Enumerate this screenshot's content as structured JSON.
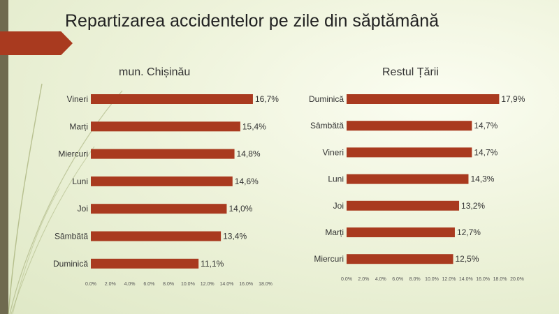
{
  "slide": {
    "title": "Repartizarea accidentelor pe zile din săptămână",
    "colors": {
      "bar": "#a93a1f",
      "sidebar": "#6f6a4f",
      "band": "#a93a1f"
    }
  },
  "chart_data": [
    {
      "type": "bar",
      "orientation": "horizontal",
      "title": "mun. Chișinău",
      "categories": [
        "Vineri",
        "Marți",
        "Miercuri",
        "Luni",
        "Joi",
        "Sâmbătă",
        "Duminică"
      ],
      "values": [
        16.7,
        15.4,
        14.8,
        14.6,
        14.0,
        13.4,
        11.1
      ],
      "data_labels": [
        "16,7%",
        "15,4%",
        "14,8%",
        "14,6%",
        "14,0%",
        "13,4%",
        "11,1%"
      ],
      "ticks": [
        "0.0%",
        "2.0%",
        "4.0%",
        "6.0%",
        "8.0%",
        "10.0%",
        "12.0%",
        "14.0%",
        "16.0%",
        "18.0%"
      ],
      "xlim": [
        0,
        18
      ],
      "grid": false,
      "legend": "none"
    },
    {
      "type": "bar",
      "orientation": "horizontal",
      "title": "Restul Țării",
      "categories": [
        "Duminică",
        "Sâmbătă",
        "Vineri",
        "Luni",
        "Joi",
        "Marți",
        "Miercuri"
      ],
      "values": [
        17.9,
        14.7,
        14.7,
        14.3,
        13.2,
        12.7,
        12.5
      ],
      "data_labels": [
        "17,9%",
        "14,7%",
        "14,7%",
        "14,3%",
        "13,2%",
        "12,7%",
        "12,5%"
      ],
      "ticks": [
        "0.0%",
        "2.0%",
        "4.0%",
        "6.0%",
        "8.0%",
        "10.0%",
        "12.0%",
        "14.0%",
        "16.0%",
        "18.0%",
        "20.0%"
      ],
      "xlim": [
        0,
        20
      ],
      "grid": false,
      "legend": "none"
    }
  ]
}
